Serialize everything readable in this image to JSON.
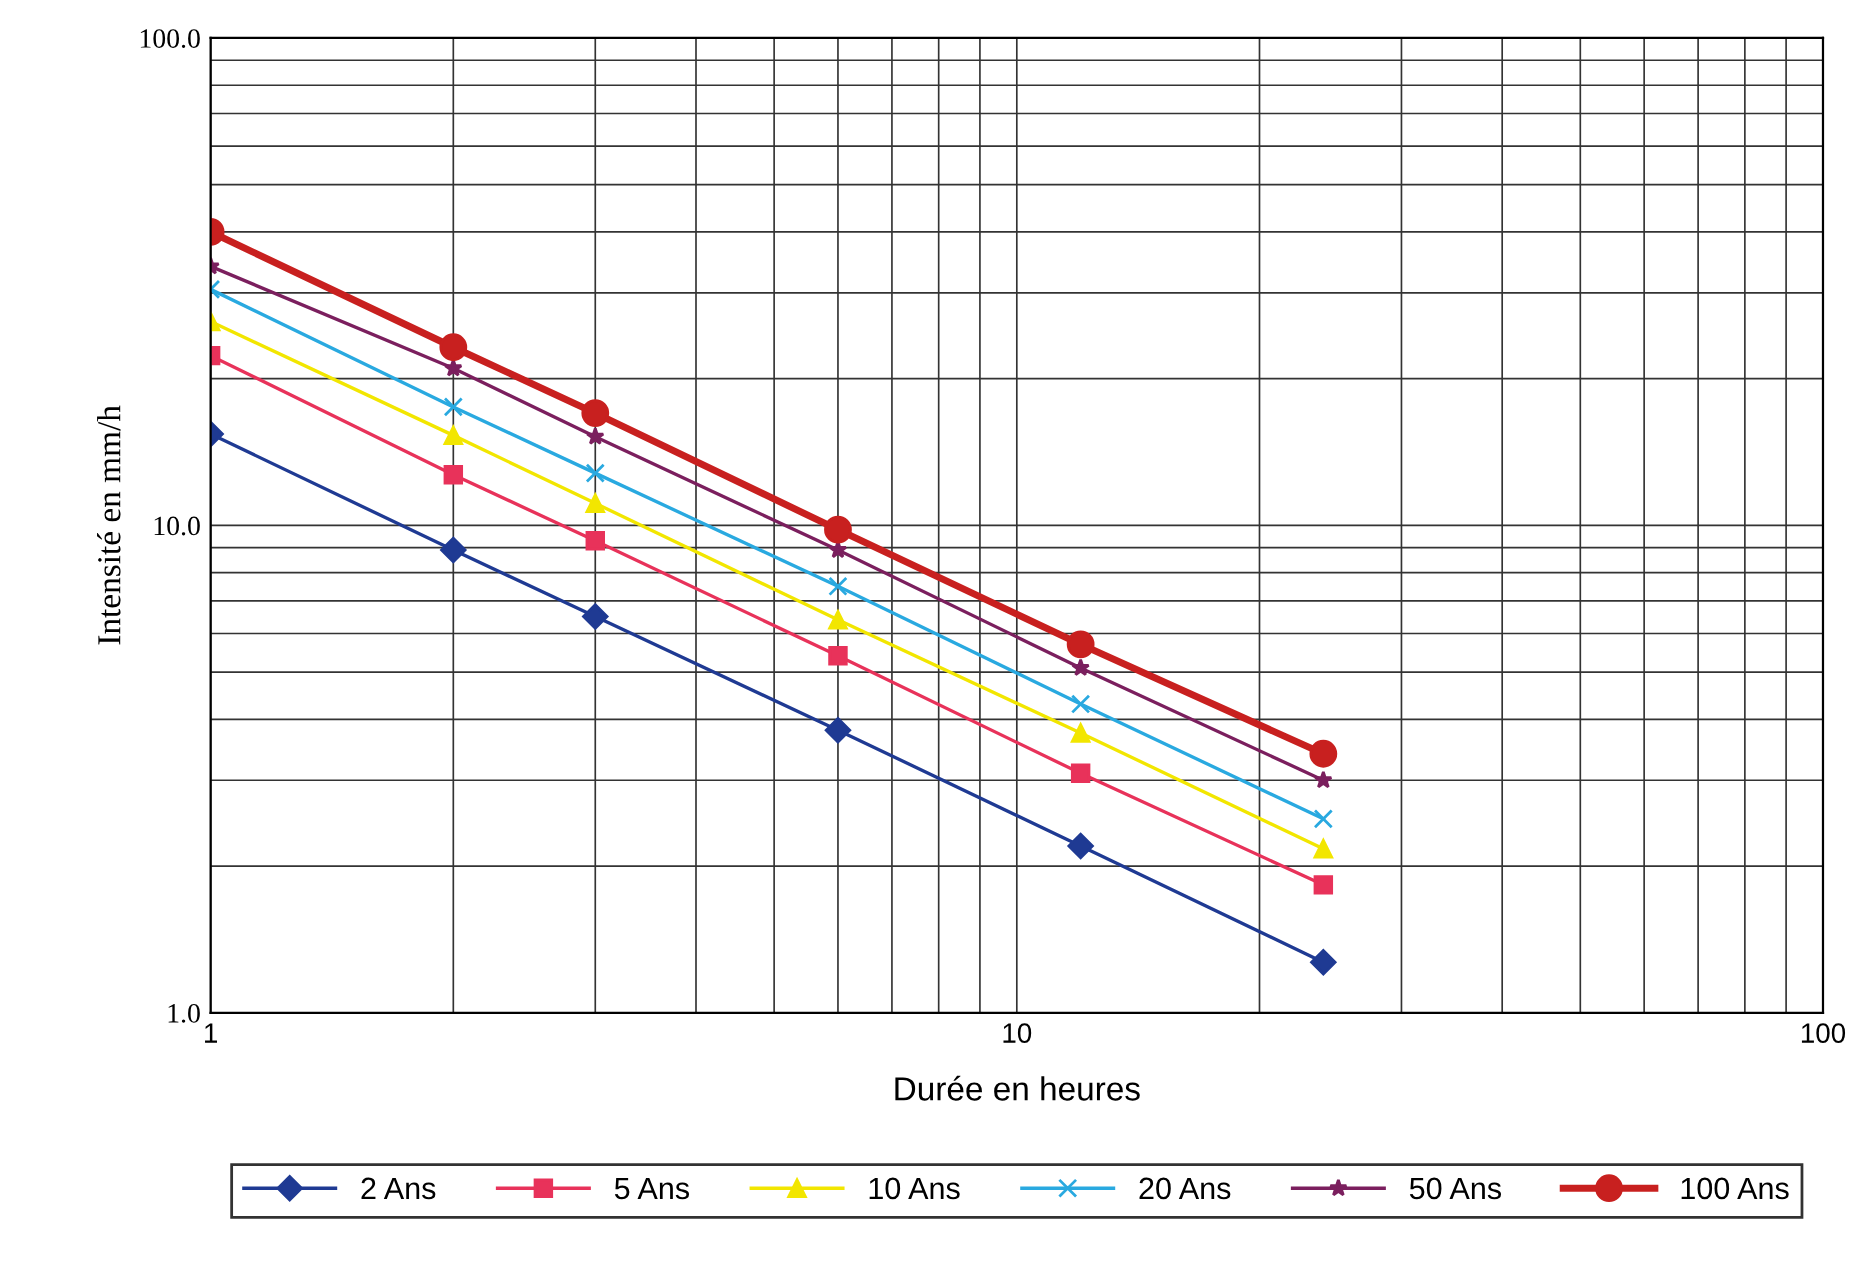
{
  "chart_data": {
    "type": "line",
    "xlabel": "Durée en heures",
    "ylabel": "Intensité en mm/h",
    "x": [
      1,
      2,
      3,
      6,
      12,
      24
    ],
    "series": [
      {
        "name": "2 Ans",
        "color": "#1f3a93",
        "marker": "diamond",
        "values": [
          15.4,
          8.9,
          6.5,
          3.8,
          2.2,
          1.27
        ]
      },
      {
        "name": "5 Ans",
        "color": "#e8325a",
        "marker": "square",
        "values": [
          22.3,
          12.7,
          9.3,
          5.4,
          3.1,
          1.83
        ]
      },
      {
        "name": "10 Ans",
        "color": "#f2e600",
        "marker": "triangle",
        "values": [
          26.2,
          15.3,
          11.1,
          6.4,
          3.75,
          2.17
        ]
      },
      {
        "name": "20 Ans",
        "color": "#29a9e0",
        "marker": "cross",
        "values": [
          30.5,
          17.5,
          12.8,
          7.5,
          4.3,
          2.5
        ]
      },
      {
        "name": "50 Ans",
        "color": "#7b1f5e",
        "marker": "star",
        "values": [
          34,
          21,
          15.2,
          8.9,
          5.1,
          3.0
        ]
      },
      {
        "name": "100 Ans",
        "color": "#c8201f",
        "marker": "circle",
        "values": [
          40,
          23.2,
          17.0,
          9.8,
          5.7,
          3.4
        ]
      }
    ],
    "log": "xy",
    "xlim": [
      1,
      100
    ],
    "ylim": [
      1,
      100
    ],
    "xticks": [
      1,
      10,
      100
    ],
    "yticks": [
      {
        "value": 1,
        "label": "1.0"
      },
      {
        "value": 10,
        "label": "10.0"
      },
      {
        "value": 100,
        "label": "100.0"
      }
    ],
    "grid": true,
    "legend": "bottom",
    "line_style": "solid"
  }
}
